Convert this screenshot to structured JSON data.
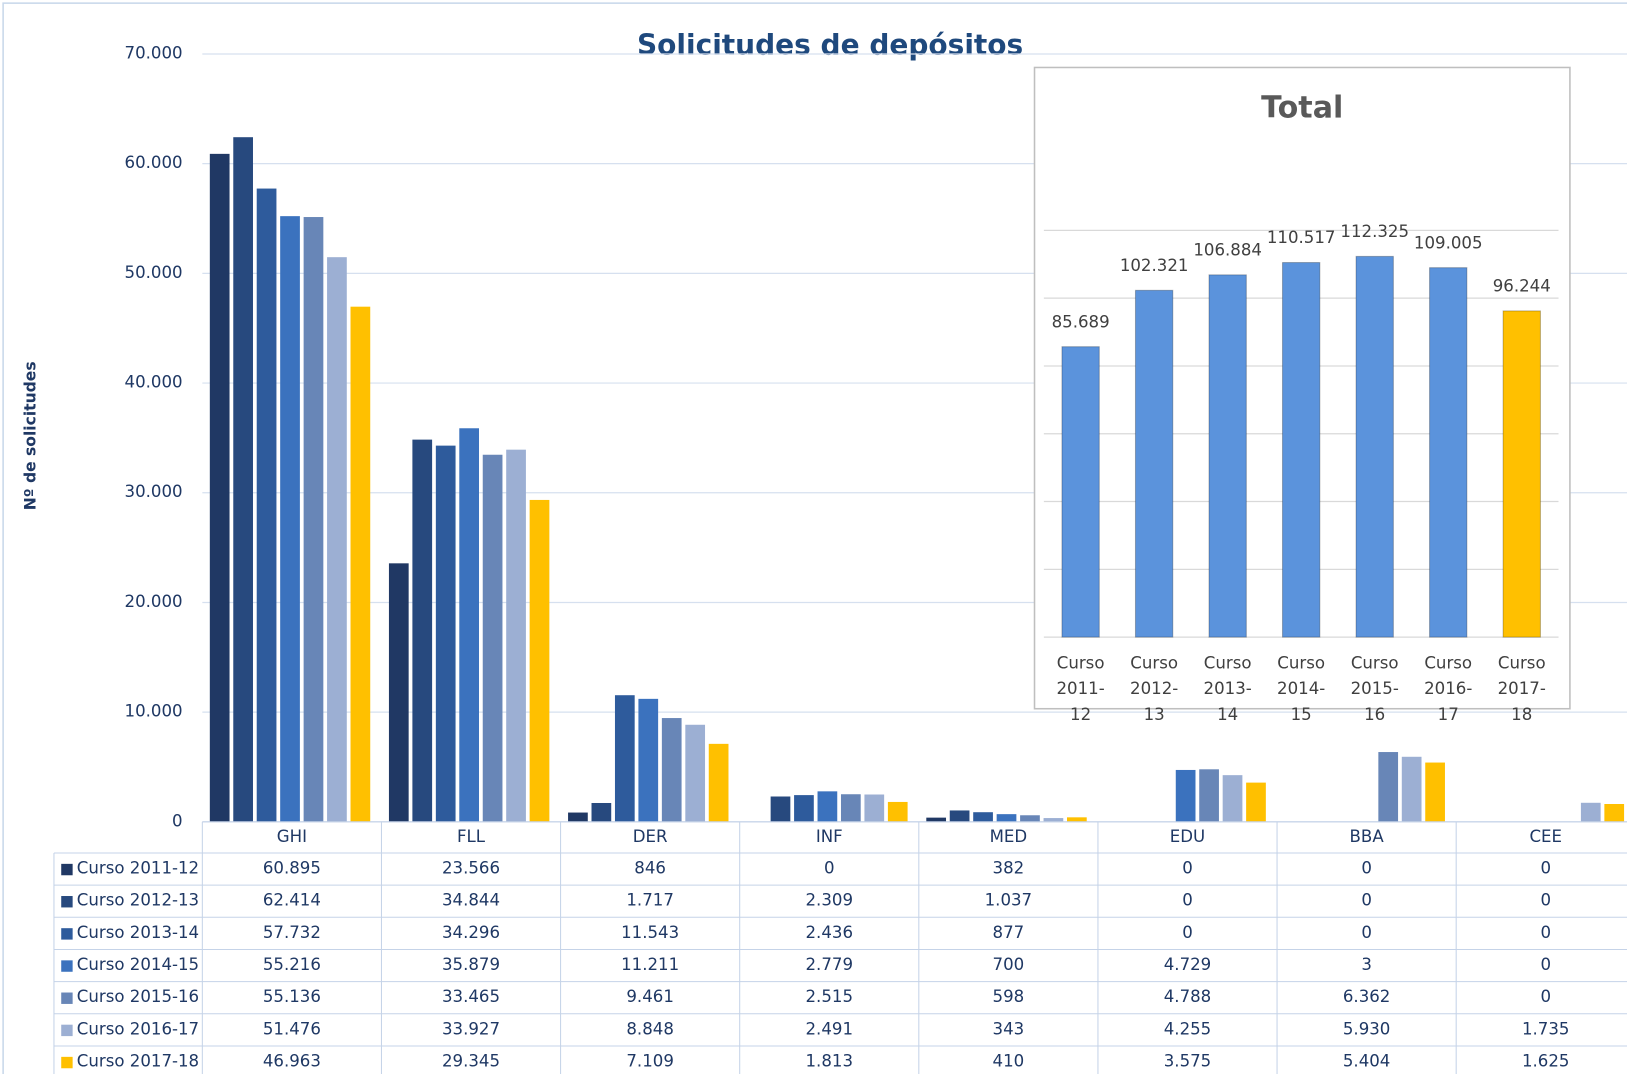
{
  "chart_data": [
    {
      "type": "bar",
      "title": "Solicitudes de depósitos",
      "ylabel": "Nº de solicitudes",
      "categories": [
        "GHI",
        "FLL",
        "DER",
        "INF",
        "MED",
        "EDU",
        "BBA",
        "CEE"
      ],
      "ylim": [
        0,
        70000
      ],
      "yticks": [
        0,
        {
          "value": 10000,
          "label": "10.000"
        },
        {
          "value": 20000,
          "label": "20.000"
        },
        {
          "value": 30000,
          "label": "30.000"
        },
        {
          "value": 40000,
          "label": "40.000"
        },
        {
          "value": 50000,
          "label": "50.000"
        },
        {
          "value": 60000,
          "label": "60.000"
        },
        {
          "value": 70000,
          "label": "70.000"
        }
      ],
      "grid": true,
      "series": [
        {
          "name": "Curso 2011-12",
          "color": "#203864",
          "values": [
            60895,
            23566,
            846,
            0,
            382,
            0,
            0,
            0
          ],
          "value_labels": [
            "60.895",
            "23.566",
            "846",
            "0",
            "382",
            "0",
            "0",
            "0"
          ]
        },
        {
          "name": "Curso 2012-13",
          "color": "#27497e",
          "values": [
            62414,
            34844,
            1717,
            2309,
            1037,
            0,
            0,
            0
          ],
          "value_labels": [
            "62.414",
            "34.844",
            "1.717",
            "2.309",
            "1.037",
            "0",
            "0",
            "0"
          ]
        },
        {
          "name": "Curso 2013-14",
          "color": "#2e5b9c",
          "values": [
            57732,
            34296,
            11543,
            2436,
            877,
            0,
            0,
            0
          ],
          "value_labels": [
            "57.732",
            "34.296",
            "11.543",
            "2.436",
            "877",
            "0",
            "0",
            "0"
          ]
        },
        {
          "name": "Curso 2014-15",
          "color": "#3b72be",
          "values": [
            55216,
            35879,
            11211,
            2779,
            700,
            4729,
            3,
            0
          ],
          "value_labels": [
            "55.216",
            "35.879",
            "11.211",
            "2.779",
            "700",
            "4.729",
            "3",
            "0"
          ]
        },
        {
          "name": "Curso 2015-16",
          "color": "#6886b7",
          "values": [
            55136,
            33465,
            9461,
            2515,
            598,
            4788,
            6362,
            0
          ],
          "value_labels": [
            "55.136",
            "33.465",
            "9.461",
            "2.515",
            "598",
            "4.788",
            "6.362",
            "0"
          ]
        },
        {
          "name": "Curso 2016-17",
          "color": "#9cafd3",
          "values": [
            51476,
            33927,
            8848,
            2491,
            343,
            4255,
            5930,
            1735
          ],
          "value_labels": [
            "51.476",
            "33.927",
            "8.848",
            "2.491",
            "343",
            "4.255",
            "5.930",
            "1.735"
          ]
        },
        {
          "name": "Curso 2017-18",
          "color": "#ffc000",
          "values": [
            46963,
            29345,
            7109,
            1813,
            410,
            3575,
            5404,
            1625
          ],
          "value_labels": [
            "46.963",
            "29.345",
            "7.109",
            "1.813",
            "410",
            "3.575",
            "5.404",
            "1.625"
          ]
        }
      ]
    },
    {
      "type": "bar",
      "title": "Total",
      "categories": [
        "Curso 2011-12",
        "Curso 2012-13",
        "Curso 2013-14",
        "Curso 2014-15",
        "Curso 2015-16",
        "Curso 2016-17",
        "Curso 2017-18"
      ],
      "values": [
        85689,
        102321,
        106884,
        110517,
        112325,
        109005,
        96244
      ],
      "value_labels": [
        "85.689",
        "102.321",
        "106.884",
        "110.517",
        "112.325",
        "109.005",
        "96.244"
      ],
      "colors": [
        "#5b93dc",
        "#5b93dc",
        "#5b93dc",
        "#5b93dc",
        "#5b93dc",
        "#5b93dc",
        "#ffc000"
      ],
      "ylim": [
        0,
        120000
      ],
      "yticks": [
        0,
        20000,
        40000,
        60000,
        80000,
        100000,
        120000
      ],
      "grid": true
    }
  ]
}
